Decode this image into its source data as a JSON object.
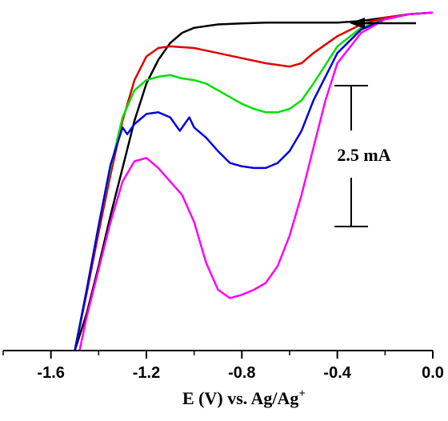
{
  "chart_data": {
    "type": "line",
    "xlabel": "E (V) vs. Ag/Ag",
    "xlabel_sup": "+",
    "xlim": [
      -1.8,
      0.0
    ],
    "x_ticks": [
      "-1.6",
      "-1.2",
      "-0.8",
      "-0.4",
      "0.0"
    ],
    "x_tick_values": [
      -1.6,
      -1.2,
      -0.8,
      -0.4,
      0.0
    ],
    "y_axis_shown": false,
    "ylim": [
      -10.0,
      0.3
    ],
    "ylabel": "",
    "scale_bar": {
      "label": "2.5 mA",
      "value": 2.5,
      "from": -2.1,
      "to": -4.6
    },
    "scan_direction": "arrow pointing toward negative potentials (top-right)",
    "series": [
      {
        "color": "#000000",
        "x": [
          0.0,
          -0.1,
          -0.2,
          -0.3,
          -0.4,
          -0.5,
          -0.6,
          -0.7,
          -0.8,
          -0.9,
          -1.0,
          -1.05,
          -1.1,
          -1.15,
          -1.2,
          -1.25,
          -1.3,
          -1.35,
          -1.4,
          -1.45,
          -1.5
        ],
        "y": [
          0.0,
          -0.05,
          -0.15,
          -0.25,
          -0.3,
          -0.3,
          -0.3,
          -0.3,
          -0.32,
          -0.35,
          -0.45,
          -0.6,
          -0.9,
          -1.4,
          -2.1,
          -3.2,
          -4.6,
          -6.0,
          -7.5,
          -8.9,
          -10.0
        ]
      },
      {
        "color": "#e00000",
        "x": [
          0.0,
          -0.1,
          -0.2,
          -0.3,
          -0.4,
          -0.5,
          -0.55,
          -0.6,
          -0.7,
          -0.8,
          -0.9,
          -1.0,
          -1.1,
          -1.15,
          -1.2,
          -1.25,
          -1.3,
          -1.35,
          -1.4,
          -1.45,
          -1.5
        ],
        "y": [
          0.0,
          -0.05,
          -0.15,
          -0.35,
          -0.7,
          -1.2,
          -1.5,
          -1.6,
          -1.5,
          -1.35,
          -1.2,
          -1.05,
          -1.0,
          -1.05,
          -1.3,
          -2.0,
          -3.2,
          -4.8,
          -6.5,
          -8.3,
          -10.0
        ]
      },
      {
        "color": "#00e000",
        "x": [
          0.0,
          -0.1,
          -0.2,
          -0.3,
          -0.4,
          -0.5,
          -0.55,
          -0.6,
          -0.65,
          -0.7,
          -0.75,
          -0.8,
          -0.85,
          -0.9,
          -0.95,
          -1.0,
          -1.05,
          -1.1,
          -1.15,
          -1.2,
          -1.25,
          -1.3,
          -1.35,
          -1.4,
          -1.45,
          -1.5
        ],
        "y": [
          0.0,
          -0.05,
          -0.2,
          -0.45,
          -1.0,
          -2.1,
          -2.6,
          -2.85,
          -2.95,
          -2.95,
          -2.85,
          -2.7,
          -2.5,
          -2.3,
          -2.1,
          -2.0,
          -1.95,
          -1.85,
          -1.9,
          -2.0,
          -2.3,
          -3.1,
          -4.6,
          -6.3,
          -8.2,
          -10.0
        ]
      },
      {
        "color": "#0000e0",
        "x": [
          0.0,
          -0.1,
          -0.2,
          -0.3,
          -0.4,
          -0.5,
          -0.55,
          -0.6,
          -0.65,
          -0.7,
          -0.75,
          -0.8,
          -0.85,
          -0.9,
          -0.95,
          -1.0,
          -1.02,
          -1.04,
          -1.06,
          -1.1,
          -1.15,
          -1.2,
          -1.25,
          -1.28,
          -1.3,
          -1.35,
          -1.4,
          -1.45,
          -1.5
        ],
        "y": [
          0.0,
          -0.05,
          -0.2,
          -0.5,
          -1.2,
          -2.6,
          -3.5,
          -4.1,
          -4.45,
          -4.6,
          -4.6,
          -4.55,
          -4.45,
          -4.1,
          -3.7,
          -3.4,
          -3.1,
          -3.3,
          -3.5,
          -3.1,
          -2.95,
          -3.0,
          -3.3,
          -3.6,
          -3.4,
          -4.5,
          -6.3,
          -8.2,
          -10.0
        ]
      },
      {
        "color": "#ff00ff",
        "x": [
          0.0,
          -0.1,
          -0.2,
          -0.3,
          -0.4,
          -0.45,
          -0.5,
          -0.55,
          -0.6,
          -0.65,
          -0.7,
          -0.75,
          -0.8,
          -0.85,
          -0.9,
          -0.95,
          -1.0,
          -1.05,
          -1.1,
          -1.15,
          -1.2,
          -1.25,
          -1.3,
          -1.35,
          -1.4,
          -1.45,
          -1.48
        ],
        "y": [
          0.0,
          -0.05,
          -0.2,
          -0.6,
          -1.5,
          -2.6,
          -4.0,
          -5.4,
          -6.6,
          -7.5,
          -8.0,
          -8.2,
          -8.35,
          -8.45,
          -8.2,
          -7.4,
          -6.2,
          -5.4,
          -5.0,
          -4.6,
          -4.3,
          -4.4,
          -5.0,
          -6.2,
          -7.6,
          -9.0,
          -10.0
        ]
      }
    ]
  }
}
